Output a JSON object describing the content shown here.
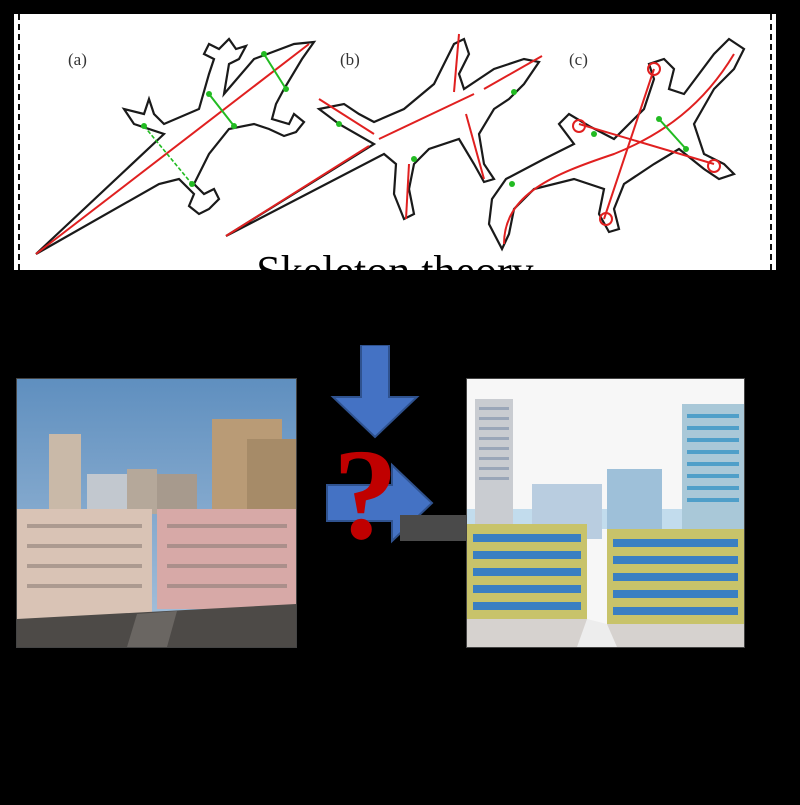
{
  "top_panel": {
    "labels": [
      "(a)",
      "(b)",
      "(c)"
    ],
    "caption": "Skeleton theory"
  },
  "left_image": {
    "description_icon": "photo-icon"
  },
  "right_image": {
    "description_icon": "building-model-icon"
  },
  "center": {
    "question_mark": "?"
  },
  "colors": {
    "background": "#000000",
    "arrow_blue": "#4472c4",
    "arrow_dark": "#2f528f",
    "question_red": "#c00000",
    "skeleton_red": "#e02020",
    "width_green": "#22bb22"
  }
}
